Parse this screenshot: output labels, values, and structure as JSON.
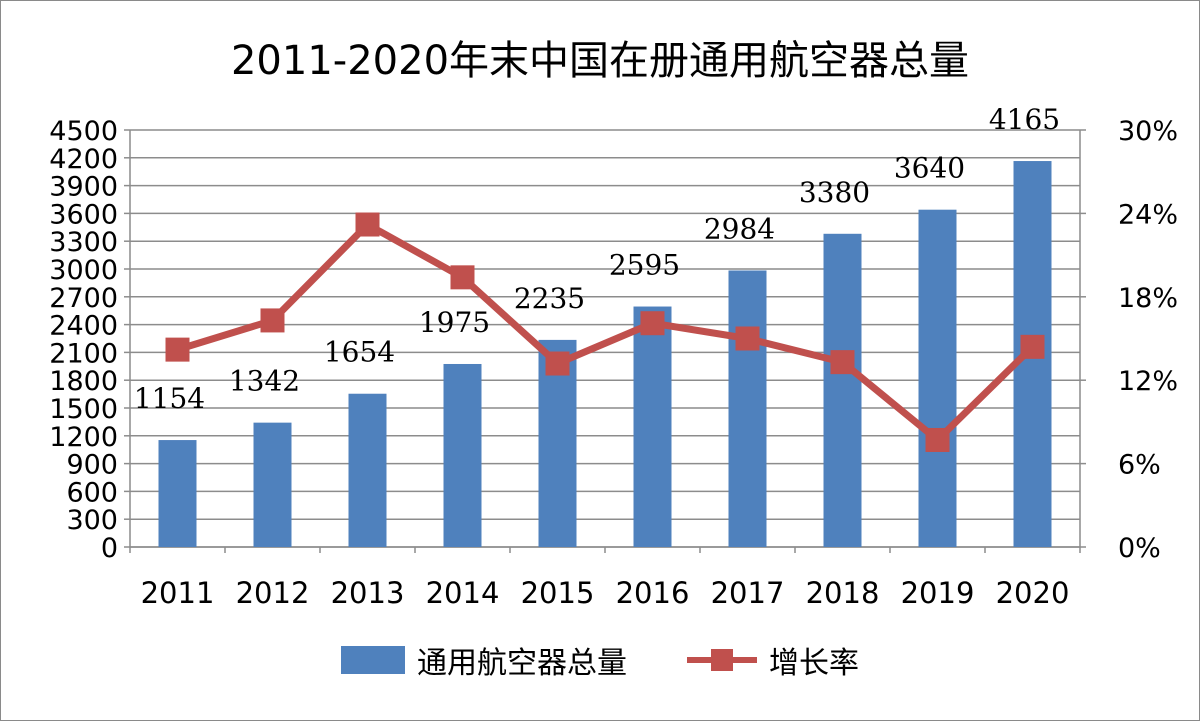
{
  "chart_data": {
    "type": "bar",
    "title": "2011-2020年末中国在册通用航空器总量",
    "categories": [
      "2011",
      "2012",
      "2013",
      "2014",
      "2015",
      "2016",
      "2017",
      "2018",
      "2019",
      "2020"
    ],
    "series": [
      {
        "name": "通用航空器总量",
        "type": "bar",
        "axis": "left",
        "color": "#4f81bd",
        "values": [
          1154,
          1342,
          1654,
          1975,
          2235,
          2595,
          2984,
          3380,
          3640,
          4165
        ]
      },
      {
        "name": "增长率",
        "type": "line",
        "axis": "right",
        "color": "#c0504d",
        "values": [
          14.2,
          16.3,
          23.2,
          19.4,
          13.2,
          16.1,
          15.0,
          13.3,
          7.7,
          14.4
        ]
      }
    ],
    "y_left": {
      "min": 0,
      "max": 4500,
      "step": 300,
      "ticks": [
        "0",
        "300",
        "600",
        "900",
        "1200",
        "1500",
        "1800",
        "2100",
        "2400",
        "2700",
        "3000",
        "3300",
        "3600",
        "3900",
        "4200",
        "4500"
      ]
    },
    "y_right": {
      "min": 0,
      "max": 30,
      "ticks": [
        "0%",
        "6%",
        "12%",
        "18%",
        "24%",
        "30%"
      ]
    },
    "data_labels": [
      "1154",
      "1342",
      "1654",
      "1975",
      "2235",
      "2595",
      "2984",
      "3380",
      "3640",
      "4165"
    ],
    "grid": true,
    "legend_position": "bottom"
  }
}
